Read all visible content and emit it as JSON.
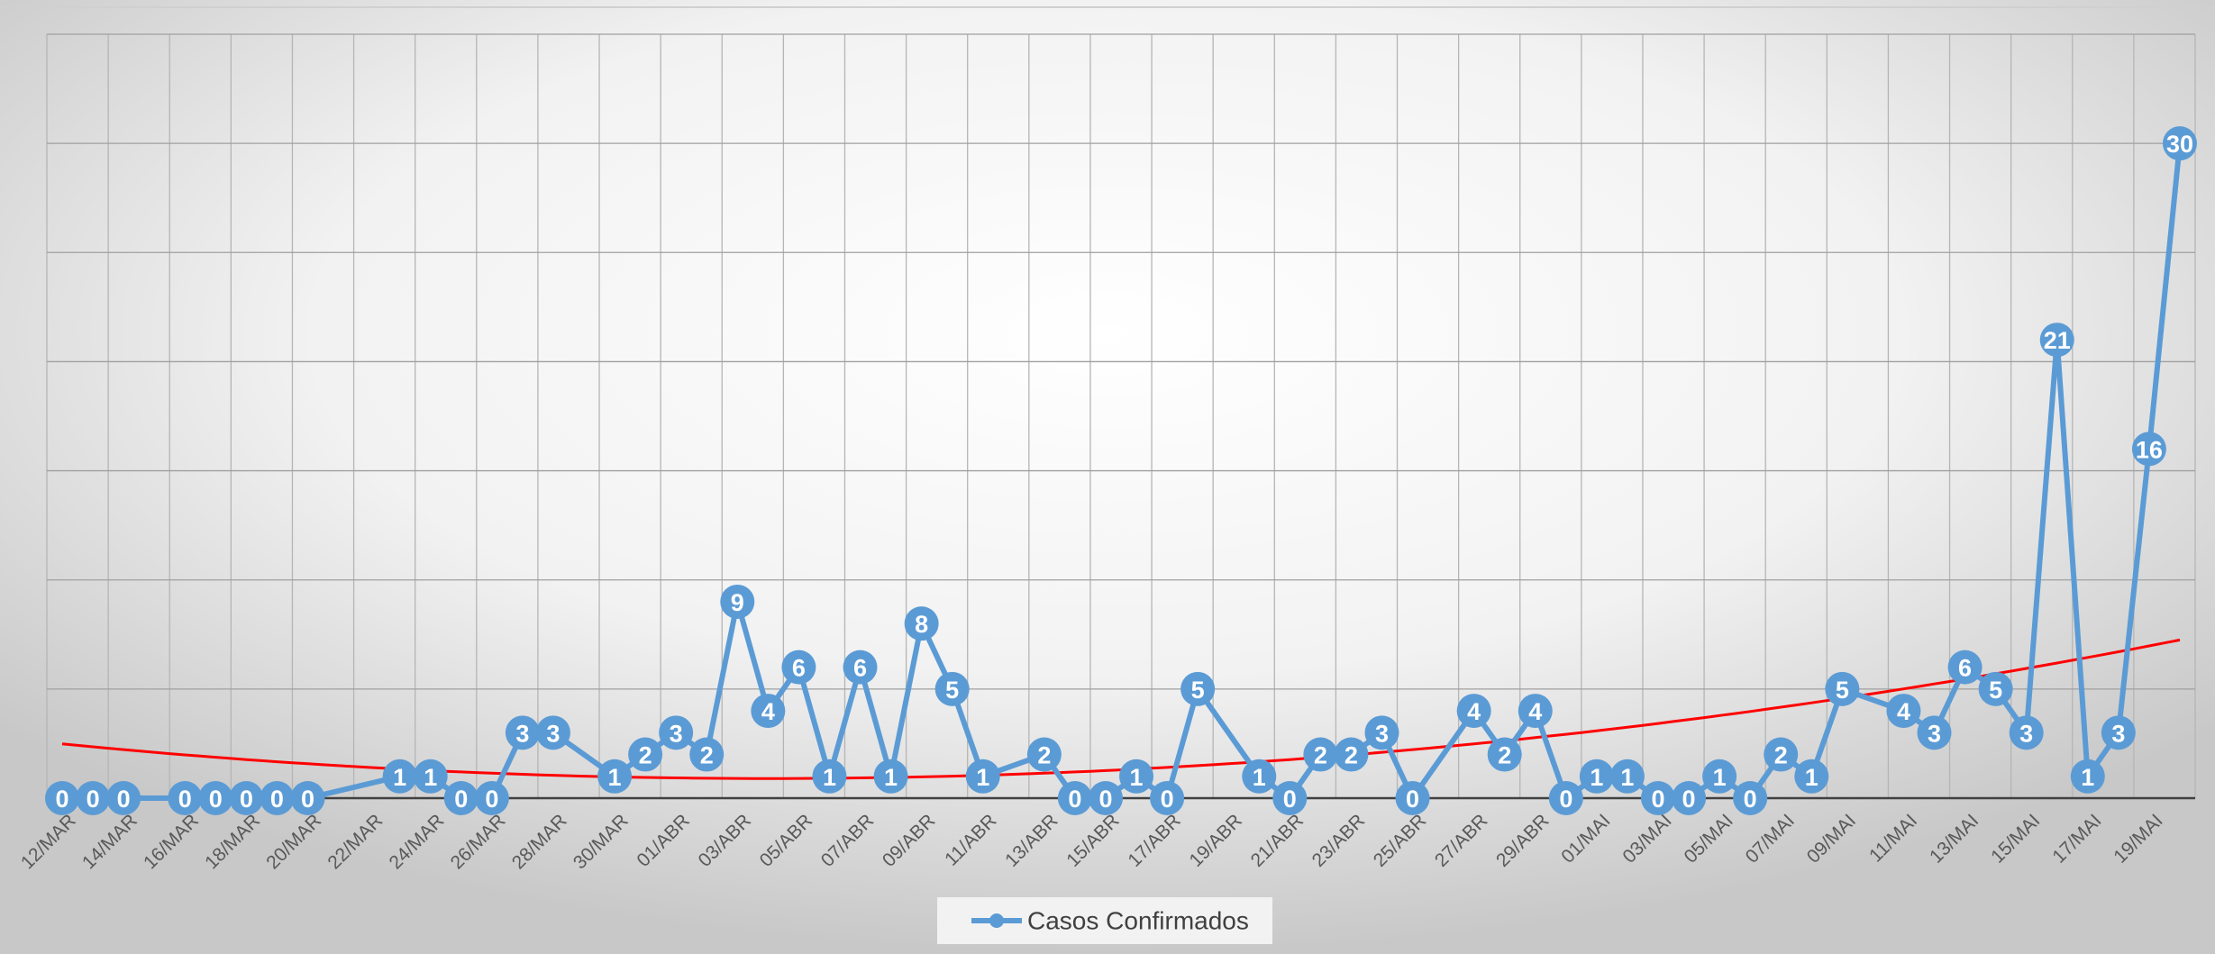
{
  "chart_data": {
    "type": "line",
    "categories": [
      "12/MAR",
      null,
      "14/MAR",
      null,
      "16/MAR",
      null,
      "18/MAR",
      null,
      "20/MAR",
      null,
      "22/MAR",
      null,
      "24/MAR",
      null,
      "26/MAR",
      null,
      "28/MAR",
      null,
      "30/MAR",
      null,
      "01/ABR",
      null,
      "03/ABR",
      null,
      "05/ABR",
      null,
      "07/ABR",
      null,
      "09/ABR",
      null,
      "11/ABR",
      null,
      "13/ABR",
      null,
      "15/ABR",
      null,
      "17/ABR",
      null,
      "19/ABR",
      null,
      "21/ABR",
      null,
      "23/ABR",
      null,
      "25/ABR",
      null,
      "27/ABR",
      null,
      "29/ABR",
      null,
      "01/MAI",
      null,
      "03/MAI",
      null,
      "05/MAI",
      null,
      "07/MAI",
      null,
      "09/MAI",
      null,
      "11/MAI",
      null,
      "13/MAI",
      null,
      "15/MAI",
      null,
      "17/MAI",
      null,
      "19/MAI",
      null
    ],
    "series": [
      {
        "name": "Casos Confirmados",
        "color": "#5b9bd5",
        "values": [
          0,
          0,
          0,
          null,
          0,
          0,
          0,
          0,
          0,
          null,
          null,
          1,
          1,
          0,
          0,
          3,
          3,
          null,
          1,
          2,
          3,
          2,
          9,
          4,
          6,
          1,
          6,
          1,
          8,
          5,
          1,
          null,
          2,
          0,
          0,
          1,
          0,
          5,
          null,
          1,
          0,
          2,
          2,
          3,
          0,
          null,
          4,
          2,
          4,
          0,
          1,
          1,
          0,
          0,
          1,
          0,
          2,
          1,
          5,
          null,
          4,
          3,
          6,
          5,
          3,
          21,
          1,
          3,
          16,
          30
        ]
      }
    ],
    "connect_gaps": true,
    "data_labels": true,
    "trendline": {
      "type": "polynomial",
      "color": "#ff0000",
      "coefficients": [
        2.487,
        -0.138,
        0.003
      ]
    },
    "ylim": [
      0,
      35
    ],
    "yticks": [
      0,
      5,
      10,
      15,
      20,
      25,
      30,
      35
    ],
    "grid": true,
    "legend": "bottom"
  }
}
